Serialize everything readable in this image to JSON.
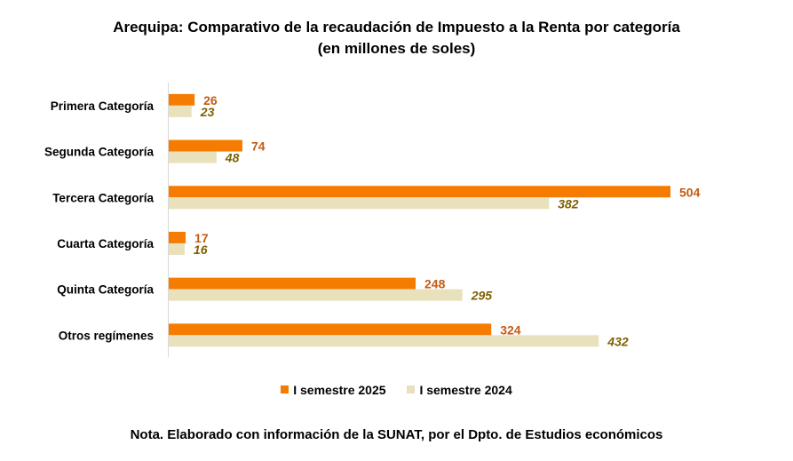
{
  "chart_data": {
    "type": "bar",
    "orientation": "horizontal",
    "title": "Arequipa: Comparativo de la recaudación de Impuesto a la Renta por categoría",
    "subtitle": "(en millones de soles)",
    "xlabel": "",
    "ylabel": "",
    "categories": [
      "Primera Categoría",
      "Segunda Categoría",
      "Tercera Categoría",
      "Cuarta Categoría",
      "Quinta Categoría",
      "Otros regímenes"
    ],
    "series": [
      {
        "name": "I semestre 2025",
        "color": "#f57c00",
        "label_color": "#c55a11",
        "label_style": "bold",
        "values": [
          26,
          74,
          504,
          17,
          248,
          324
        ]
      },
      {
        "name": "I semestre 2024",
        "color": "#e8e1bc",
        "label_color": "#7f6000",
        "label_style": "bold-italic",
        "values": [
          23,
          48,
          382,
          16,
          295,
          432
        ]
      }
    ],
    "xlim": [
      0,
      504
    ],
    "grid": false,
    "legend_position": "bottom",
    "note": "Nota. Elaborado con información de la SUNAT, por el Dpto. de Estudios económicos"
  }
}
